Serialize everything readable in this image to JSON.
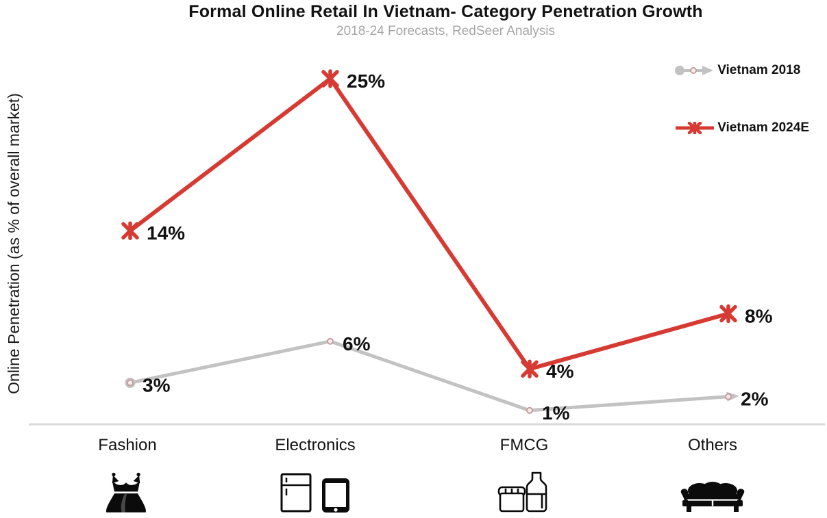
{
  "chart_data": {
    "type": "line",
    "title": "Formal Online Retail In Vietnam- Category Penetration Growth",
    "subtitle": "2018-24 Forecasts, RedSeer Analysis",
    "ylabel": "Online Penetration (as % of overall market)",
    "xlabel": "",
    "categories": [
      "Fashion",
      "Electronics",
      "FMCG",
      "Others"
    ],
    "series": [
      {
        "name": "Vietnam 2018",
        "color": "#c2c2c2",
        "marker": "circle-ring-with-start-dot-and-end-arrow",
        "marker_ring_color": "#c89c9c",
        "values": [
          3,
          6,
          1,
          2
        ]
      },
      {
        "name": "Vietnam 2024E",
        "color": "#d63b33",
        "marker": "asterisk-x",
        "values": [
          14,
          25,
          4,
          8
        ]
      }
    ],
    "data_label_suffix": "%",
    "ylim": [
      0,
      27
    ],
    "grid": false,
    "legend_position": "top-right",
    "axis_line_color": "#d9d9d9",
    "data_label_color": "#111111",
    "category_icons": [
      "dress-icon",
      "refrigerator-icon, tablet-icon",
      "grocery-carton-icon, bottle-icon",
      "sofa-icon"
    ]
  }
}
